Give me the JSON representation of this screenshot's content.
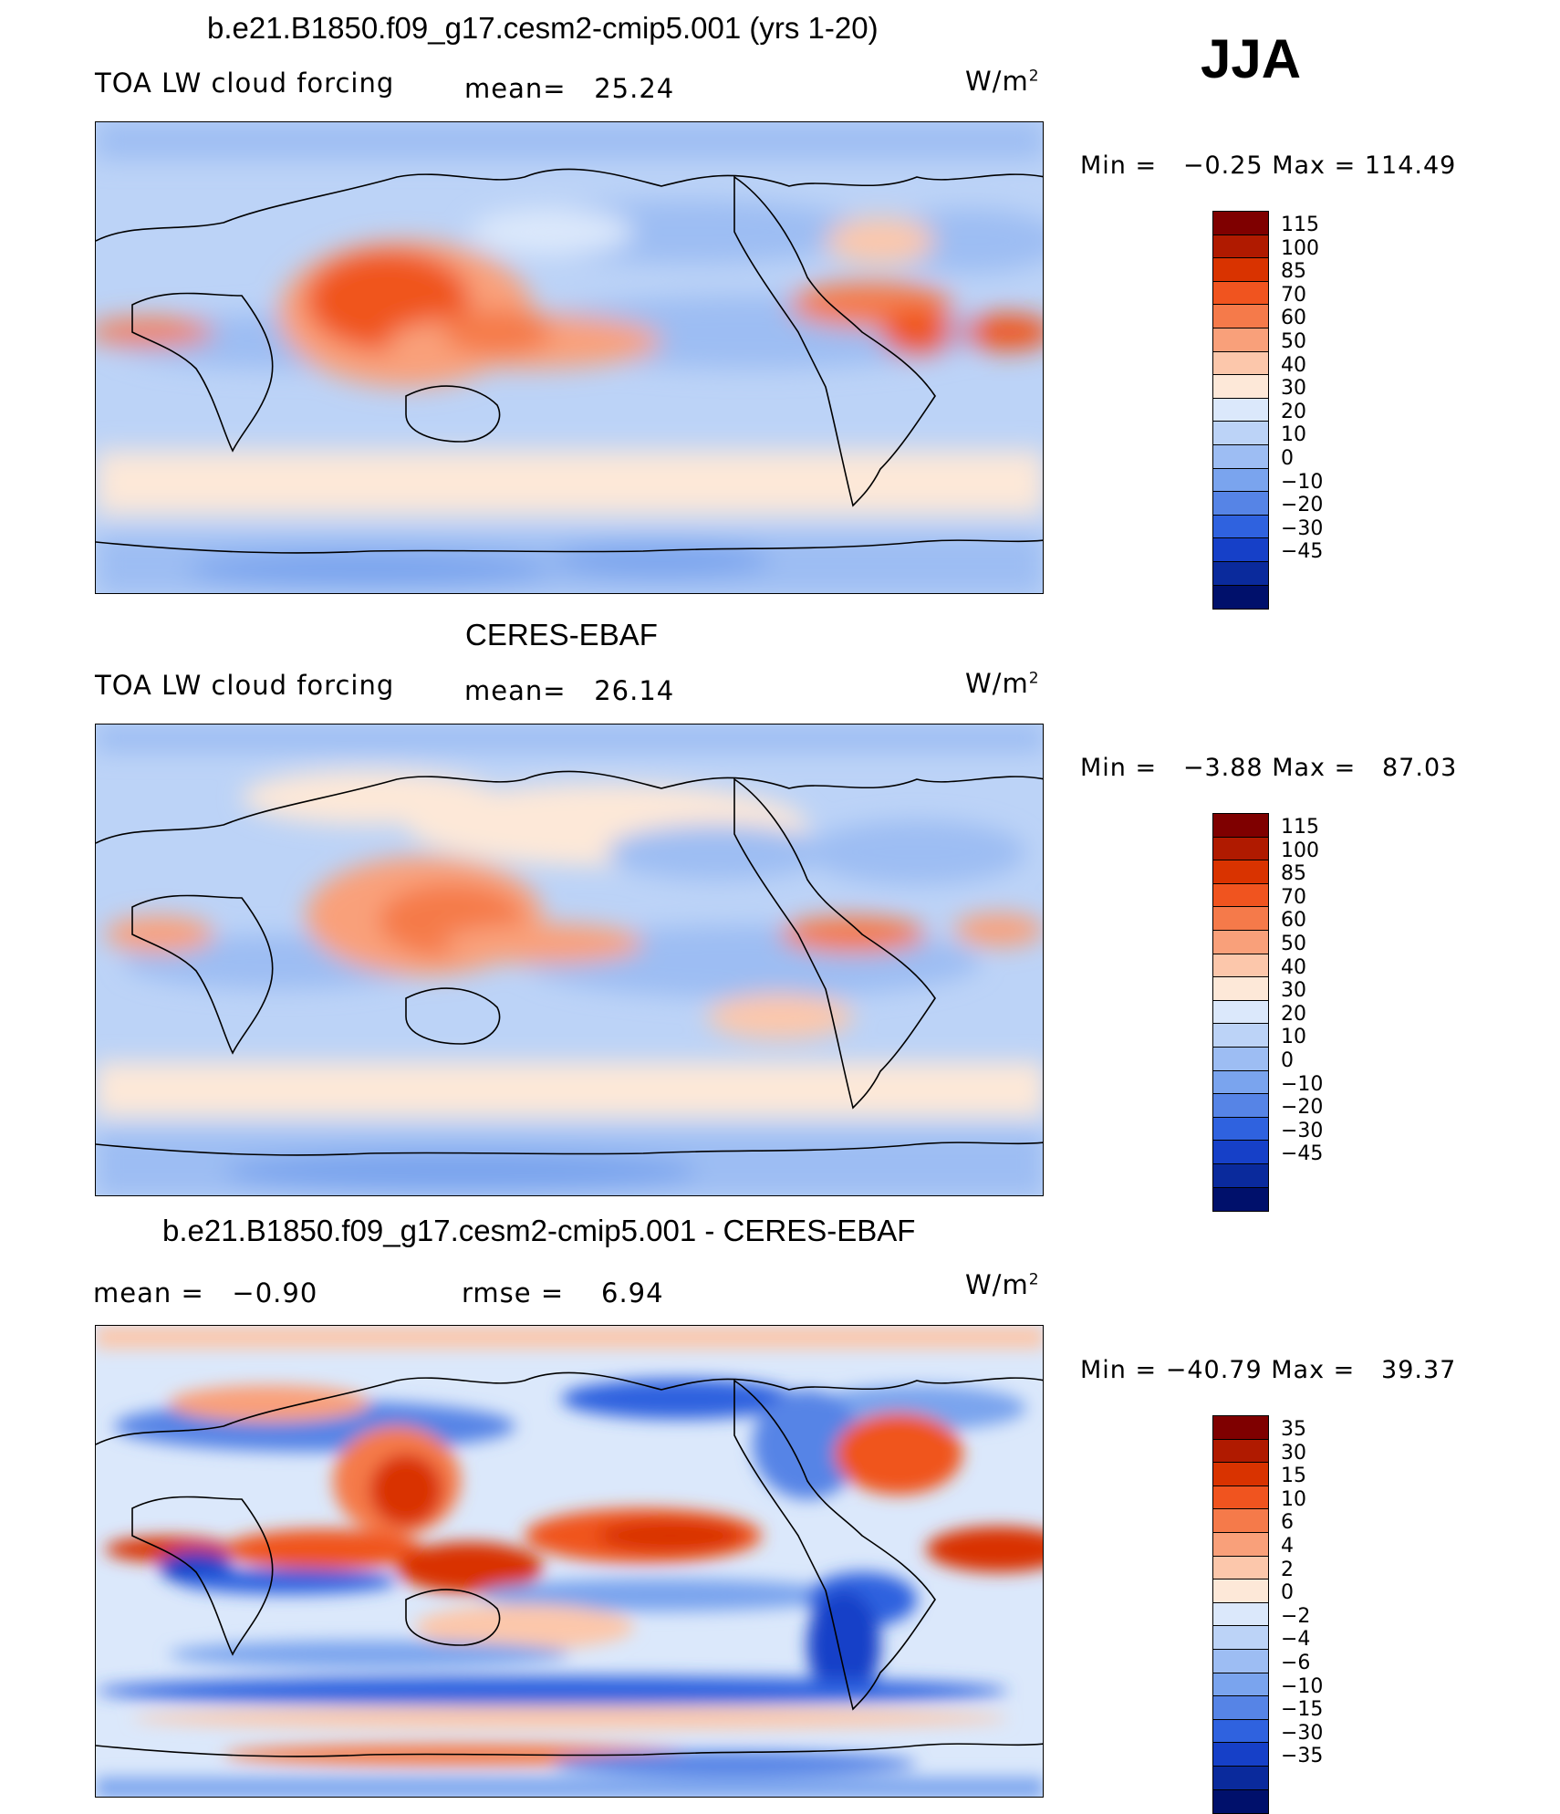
{
  "season": "JJA",
  "panels": [
    {
      "id": "model",
      "title": "b.e21.B1850.f09_g17.cesm2-cmip5.001 (yrs 1-20)",
      "variable": "TOA LW cloud forcing",
      "mean_label": "mean=",
      "mean_value": "25.24",
      "units_base": "W/m",
      "units_exp": "2",
      "min_label": "Min  =",
      "min_value": "−0.25",
      "max_label": "Max  =",
      "max_value": "114.49"
    },
    {
      "id": "obs",
      "title": "CERES-EBAF",
      "variable": "TOA LW cloud forcing",
      "mean_label": "mean=",
      "mean_value": "26.14",
      "units_base": "W/m",
      "units_exp": "2",
      "min_label": "Min  =",
      "min_value": "−3.88",
      "max_label": "Max  =",
      "max_value": "87.03"
    },
    {
      "id": "diff",
      "title": "b.e21.B1850.f09_g17.cesm2-cmip5.001 - CERES-EBAF",
      "mean_label": "mean  =",
      "mean_value": "−0.90",
      "rmse_label": "rmse  =",
      "rmse_value": "6.94",
      "units_base": "W/m",
      "units_exp": "2",
      "min_label": "Min  =",
      "min_value": "−40.79",
      "max_label": "Max  =",
      "max_value": "39.37"
    }
  ],
  "colorbars": {
    "abs": {
      "colors": [
        "#7f0000",
        "#b01a00",
        "#d93300",
        "#f0541f",
        "#f57a4a",
        "#f9a07a",
        "#fcc7ab",
        "#fde8d8",
        "#dbe8fb",
        "#bcd3f7",
        "#9dbdf3",
        "#7aa4ee",
        "#5684e6",
        "#2f62df",
        "#1640c8",
        "#0a2a9c",
        "#00106b"
      ],
      "labels": [
        "115",
        "100",
        "85",
        "70",
        "60",
        "50",
        "40",
        "30",
        "20",
        "10",
        "0",
        "−10",
        "−20",
        "−30",
        "−45"
      ]
    },
    "diff": {
      "colors": [
        "#7f0000",
        "#b01a00",
        "#d93300",
        "#f0541f",
        "#f57a4a",
        "#f9a07a",
        "#fcc7ab",
        "#fde8d8",
        "#dbe8fb",
        "#bcd3f7",
        "#9dbdf3",
        "#7aa4ee",
        "#5684e6",
        "#2f62df",
        "#1640c8",
        "#0a2a9c",
        "#00106b"
      ],
      "labels": [
        "35",
        "30",
        "15",
        "10",
        "6",
        "4",
        "2",
        "0",
        "−2",
        "−4",
        "−6",
        "−10",
        "−15",
        "−30",
        "−35"
      ]
    }
  },
  "chart_data": [
    {
      "type": "heatmap",
      "title": "b.e21.B1850.f09_g17.cesm2-cmip5.001 (yrs 1-20)",
      "variable": "TOA LW cloud forcing",
      "units": "W/m2",
      "season": "JJA",
      "mean": 25.24,
      "min": -0.25,
      "max": 114.49,
      "contour_levels": [
        -45,
        -30,
        -20,
        -10,
        0,
        10,
        20,
        30,
        40,
        50,
        60,
        70,
        85,
        100,
        115
      ]
    },
    {
      "type": "heatmap",
      "title": "CERES-EBAF",
      "variable": "TOA LW cloud forcing",
      "units": "W/m2",
      "season": "JJA",
      "mean": 26.14,
      "min": -3.88,
      "max": 87.03,
      "contour_levels": [
        -45,
        -30,
        -20,
        -10,
        0,
        10,
        20,
        30,
        40,
        50,
        60,
        70,
        85,
        100,
        115
      ]
    },
    {
      "type": "heatmap",
      "title": "b.e21.B1850.f09_g17.cesm2-cmip5.001 - CERES-EBAF",
      "units": "W/m2",
      "season": "JJA",
      "mean": -0.9,
      "rmse": 6.94,
      "min": -40.79,
      "max": 39.37,
      "contour_levels": [
        -35,
        -30,
        -15,
        -10,
        -6,
        -4,
        -2,
        0,
        2,
        4,
        6,
        10,
        15,
        30,
        35
      ]
    }
  ]
}
